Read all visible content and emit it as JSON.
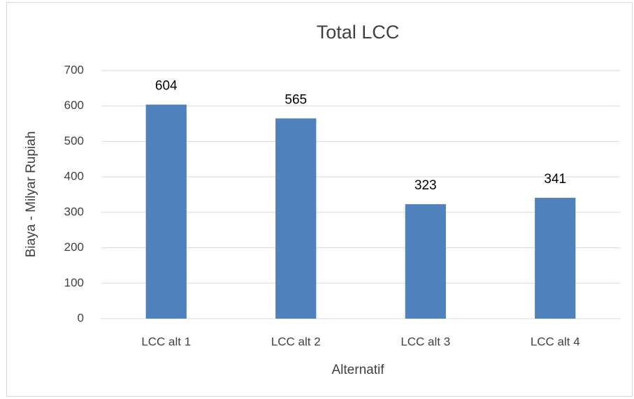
{
  "chart_data": {
    "type": "bar",
    "title": "Total LCC",
    "x_label": "Alternatif",
    "y_label": "Biaya - Milyar Rupiah",
    "categories": [
      "LCC alt 1",
      "LCC alt 2",
      "LCC alt 3",
      "LCC alt 4"
    ],
    "values": [
      604,
      565,
      323,
      341
    ],
    "color": "#4f81bd",
    "ylim": [
      0,
      700
    ],
    "yticks": [
      0,
      100,
      200,
      300,
      400,
      500,
      600,
      700
    ],
    "grid": true,
    "data_labels": true
  }
}
